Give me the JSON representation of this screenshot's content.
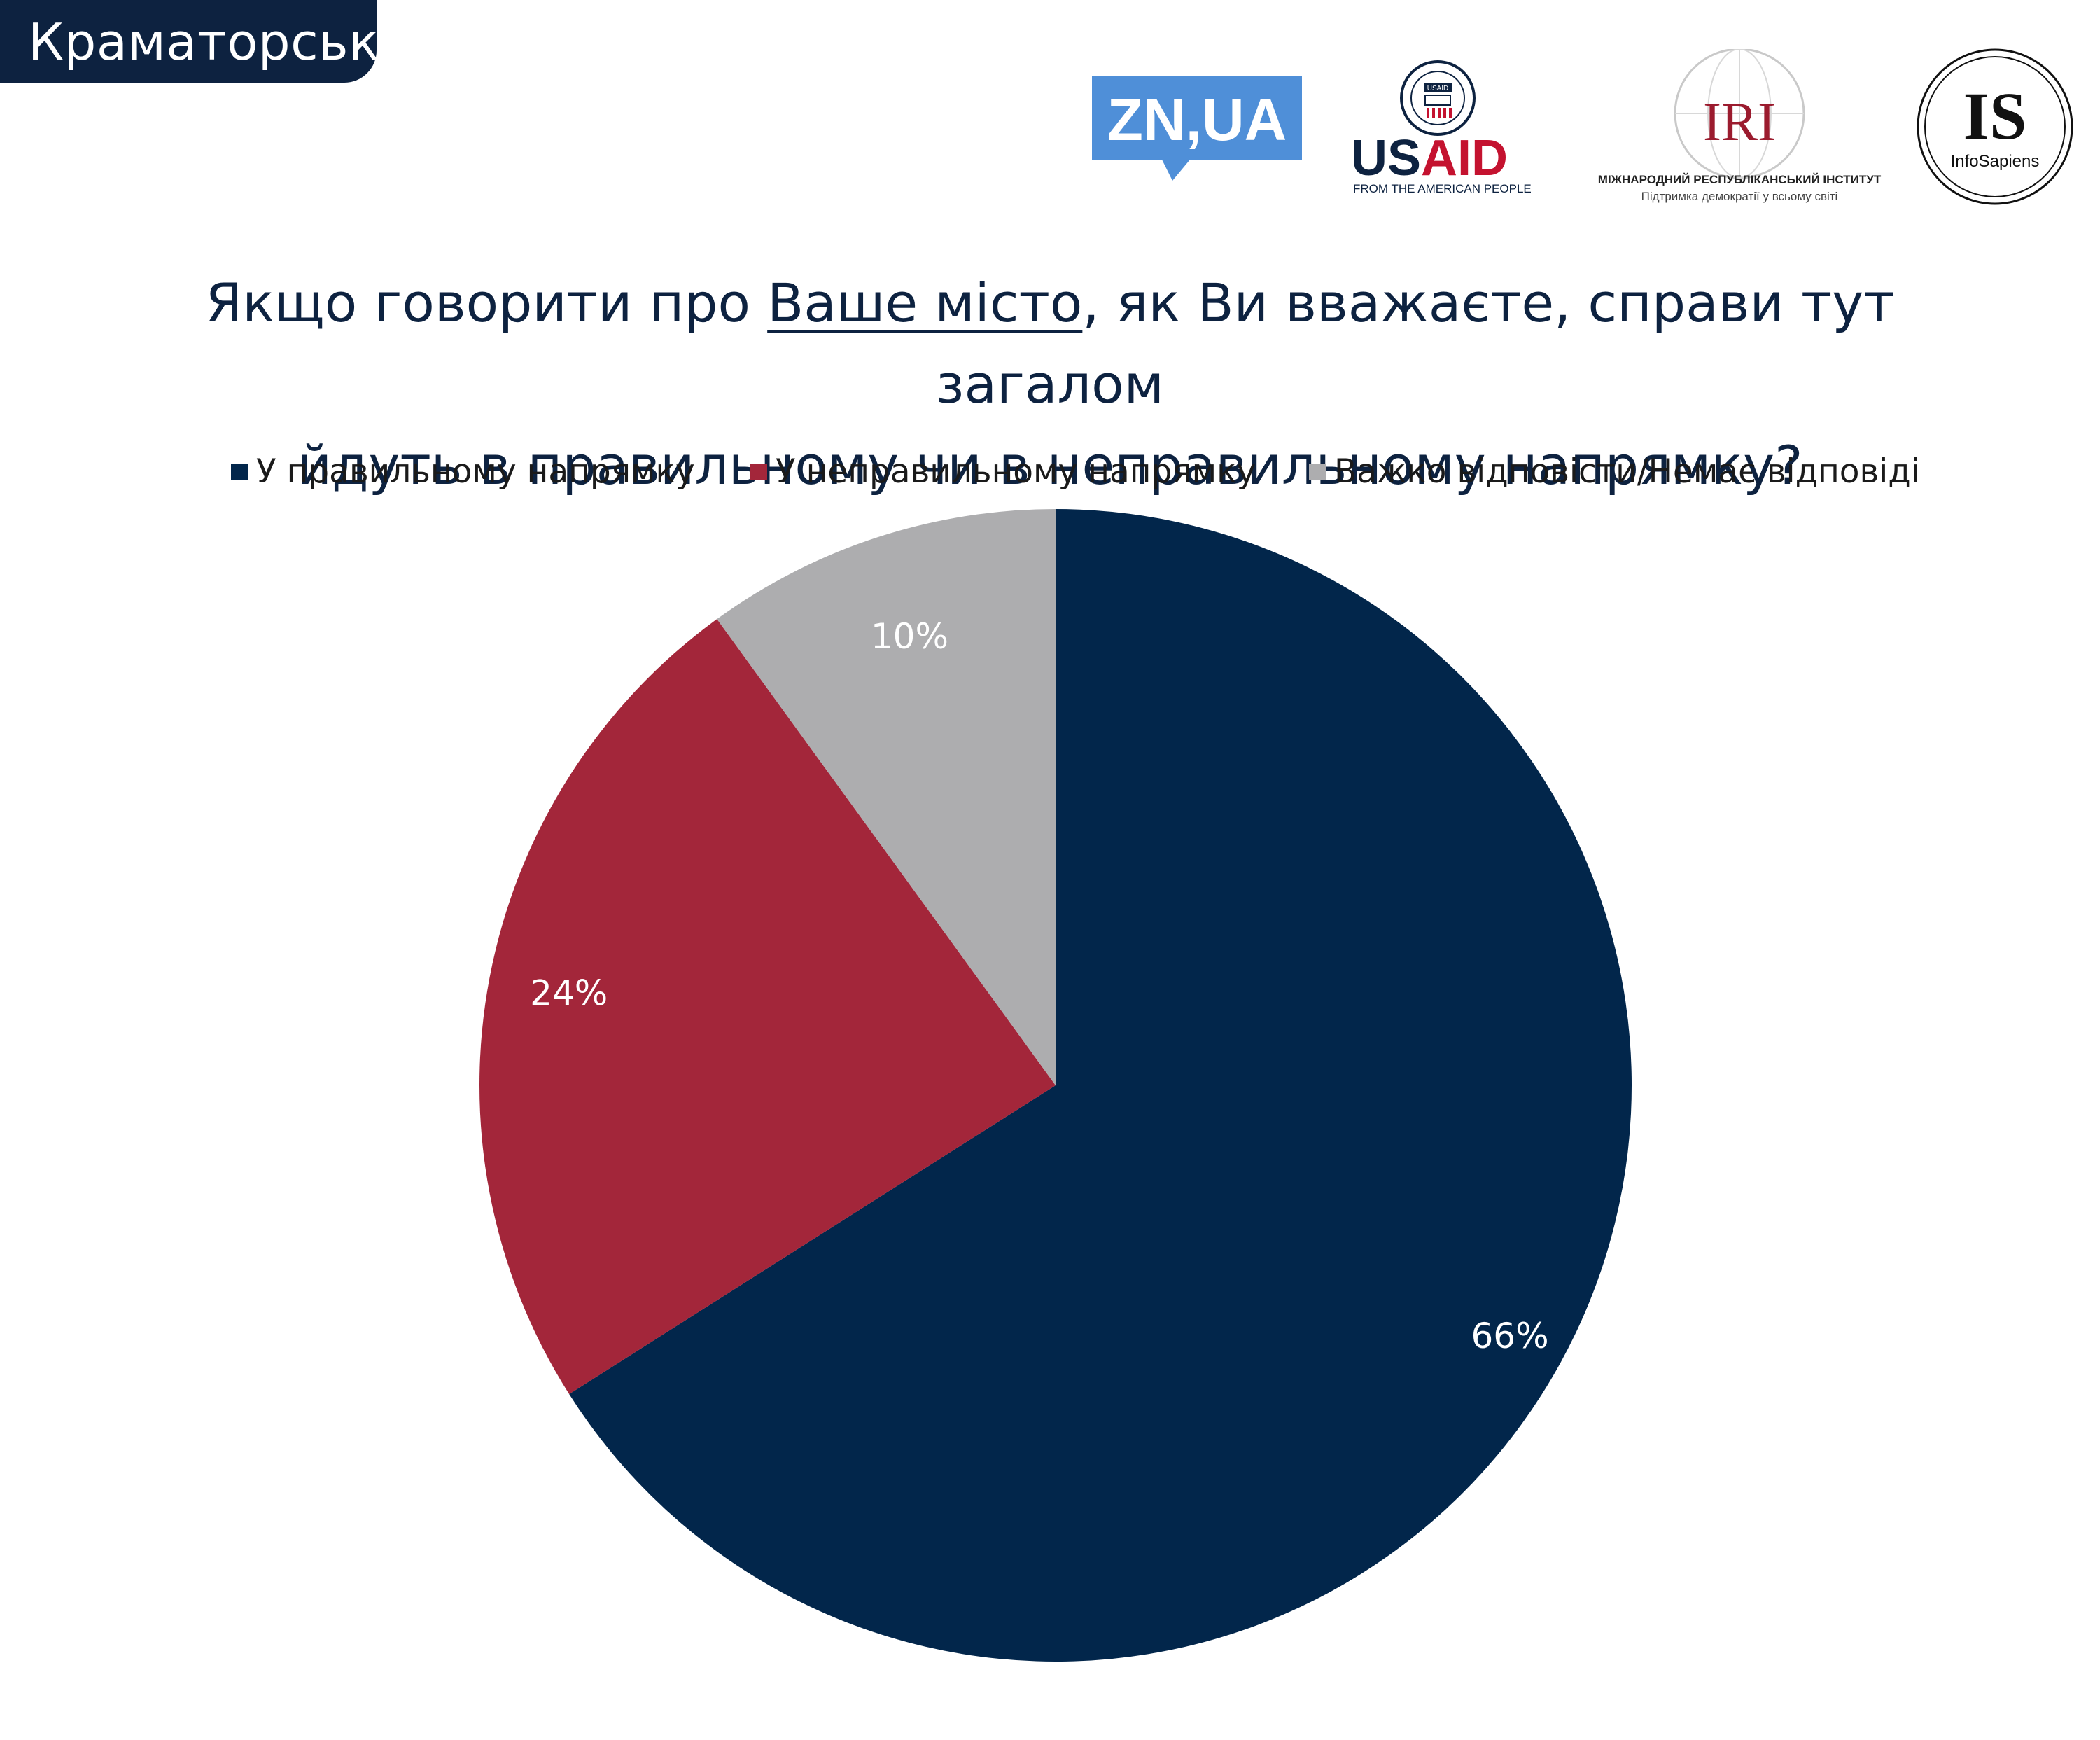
{
  "header": {
    "city": "Краматорськ"
  },
  "logos": [
    {
      "name": "zn-ua-logo",
      "text": "ZN,UA"
    },
    {
      "name": "usaid-logo",
      "text": "USAID",
      "subtext": "FROM THE AMERICAN PEOPLE",
      "seal_text": "USAID"
    },
    {
      "name": "iri-logo",
      "text": "IRI",
      "subtext": "МІЖНАРОДНИЙ РЕСПУБЛІКАНСЬКИЙ ІНСТИТУТ",
      "tagline": "Підтримка демократії у всьому світі"
    },
    {
      "name": "infosapiens-logo",
      "text": "IS",
      "subtext": "InfoSapiens"
    }
  ],
  "title": {
    "part1": "Якщо говорити про ",
    "underlined": "Ваше місто",
    "part2": ", як Ви вважаєте, справи тут загалом",
    "line2": "йдуть в правильному чи в неправильному напрямку?"
  },
  "colors": {
    "navy": "#0d2240",
    "navy_slice": "#02264b",
    "red": "#a3263a",
    "gray": "#adadaf"
  },
  "chart_data": {
    "type": "pie",
    "start_angle": "12 o'clock",
    "direction": "clockwise",
    "legend_position": "top",
    "slices": [
      {
        "name": "У правильному напрямку",
        "value": 66,
        "label": "66%",
        "color": "#02264b"
      },
      {
        "name": "У неправильному напрямку",
        "value": 24,
        "label": "24%",
        "color": "#a3263a"
      },
      {
        "name": "Важко відповісти/Немає відповіді",
        "value": 10,
        "label": "10%",
        "color": "#adadaf"
      }
    ]
  }
}
